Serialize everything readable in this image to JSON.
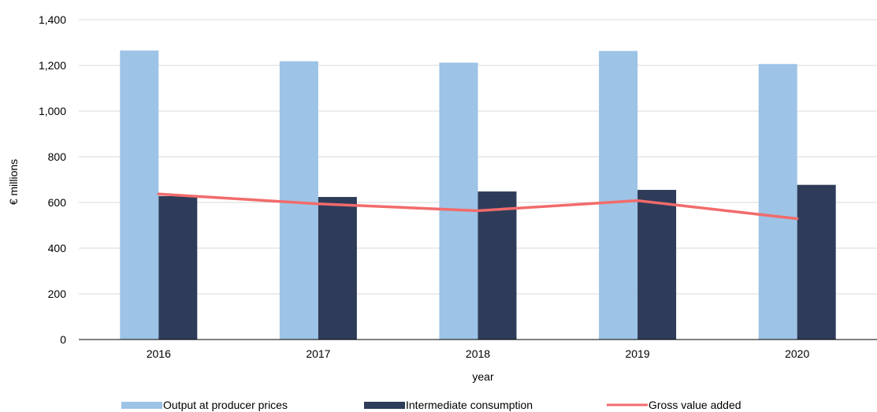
{
  "chart_data": {
    "type": "bar",
    "title": "",
    "xlabel": "year",
    "ylabel": "€ millions",
    "categories": [
      "2016",
      "2017",
      "2018",
      "2019",
      "2020"
    ],
    "ylim": [
      0,
      1400
    ],
    "yticks": [
      0,
      200,
      400,
      600,
      800,
      1000,
      1200,
      1400
    ],
    "ytick_labels": [
      "0",
      "200",
      "400",
      "600",
      "800",
      "1,000",
      "1,200",
      "1,400"
    ],
    "grid": true,
    "legend_position": "bottom",
    "series": [
      {
        "name": "Output at producer prices",
        "type": "bar",
        "color": "#9dc3e6",
        "values": [
          1265,
          1218,
          1212,
          1263,
          1206
        ]
      },
      {
        "name": "Intermediate consumption",
        "type": "bar",
        "color": "#2e3c5a",
        "values": [
          628,
          624,
          648,
          655,
          677
        ]
      },
      {
        "name": "Gross value added",
        "type": "line",
        "color": "#f26b6b",
        "values": [
          637,
          594,
          564,
          608,
          529
        ]
      }
    ]
  }
}
